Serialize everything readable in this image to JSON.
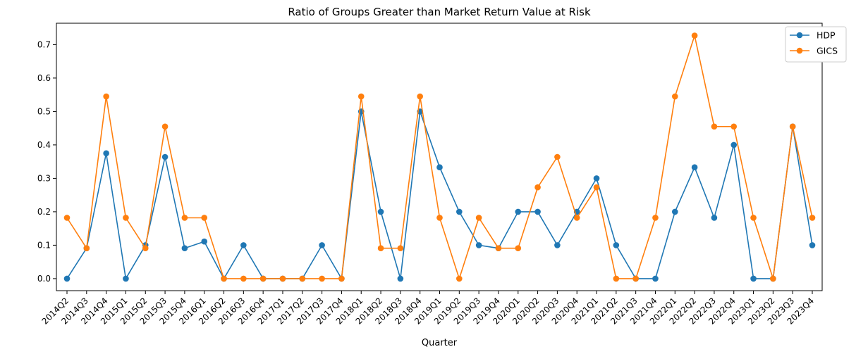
{
  "chart_data": {
    "type": "line",
    "title": "Ratio of Groups Greater than Market Return Value at Risk",
    "xlabel": "Quarter",
    "ylabel": "",
    "ylim": [
      -0.036,
      0.764
    ],
    "yticks": [
      0.0,
      0.1,
      0.2,
      0.3,
      0.4,
      0.5,
      0.6,
      0.7
    ],
    "ytick_labels": [
      "0.0",
      "0.1",
      "0.2",
      "0.3",
      "0.4",
      "0.5",
      "0.6",
      "0.7"
    ],
    "grid": false,
    "legend_position": "top-right",
    "categories": [
      "2014Q2",
      "2014Q3",
      "2014Q4",
      "2015Q1",
      "2015Q2",
      "2015Q3",
      "2015Q4",
      "2016Q1",
      "2016Q2",
      "2016Q3",
      "2016Q4",
      "2017Q1",
      "2017Q2",
      "2017Q3",
      "2017Q4",
      "2018Q1",
      "2018Q2",
      "2018Q3",
      "2018Q4",
      "2019Q1",
      "2019Q2",
      "2019Q3",
      "2019Q4",
      "2020Q1",
      "2020Q2",
      "2020Q3",
      "2020Q4",
      "2021Q1",
      "2021Q2",
      "2021Q3",
      "2021Q4",
      "2022Q1",
      "2022Q2",
      "2022Q3",
      "2022Q4",
      "2023Q1",
      "2023Q2",
      "2023Q3",
      "2023Q4"
    ],
    "series": [
      {
        "name": "HDP",
        "color": "#1f77b4",
        "values": [
          0.0,
          0.091,
          0.375,
          0.0,
          0.1,
          0.364,
          0.091,
          0.111,
          0.0,
          0.1,
          0.0,
          0.0,
          0.0,
          0.1,
          0.0,
          0.5,
          0.2,
          0.0,
          0.5,
          0.333,
          0.2,
          0.1,
          0.091,
          0.2,
          0.2,
          0.1,
          0.2,
          0.3,
          0.1,
          0.0,
          0.0,
          0.2,
          0.333,
          0.182,
          0.4,
          0.0,
          0.0,
          0.455,
          0.1
        ]
      },
      {
        "name": "GICS",
        "color": "#ff7f0e",
        "values": [
          0.182,
          0.091,
          0.545,
          0.182,
          0.091,
          0.455,
          0.182,
          0.182,
          0.0,
          0.0,
          0.0,
          0.0,
          0.0,
          0.0,
          0.0,
          0.545,
          0.091,
          0.091,
          0.545,
          0.182,
          0.0,
          0.182,
          0.091,
          0.091,
          0.273,
          0.364,
          0.182,
          0.273,
          0.0,
          0.0,
          0.182,
          0.545,
          0.727,
          0.455,
          0.455,
          0.182,
          0.0,
          0.455,
          0.182
        ]
      }
    ]
  }
}
